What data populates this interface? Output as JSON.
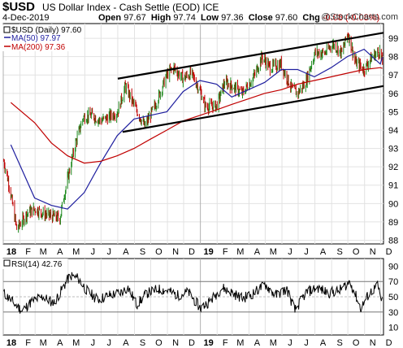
{
  "header": {
    "symbol": "$USD",
    "description": "US Dollar Index - Cash Settle (EOD)",
    "exchange": "ICE",
    "date": "4-Dec-2019",
    "open_label": "Open",
    "open": "97.67",
    "high_label": "High",
    "high": "97.74",
    "low_label": "Low",
    "low": "97.36",
    "close_label": "Close",
    "close": "97.60",
    "chg_label": "Chg",
    "chg": "-0.08 (-0.08%)",
    "watermark": "@StockCharts.com"
  },
  "colors": {
    "price": "#000000",
    "up": "#1f8a1f",
    "down": "#c00000",
    "ma50": "#1f1f9f",
    "ma200": "#c00000",
    "rsi": "#000000"
  },
  "chart_data": [
    {
      "type": "line",
      "title": "$USD (Daily) 97.60",
      "ylim": [
        87.8,
        99.8
      ],
      "y_ticks": [
        "88",
        "89",
        "90",
        "91",
        "92",
        "93",
        "94",
        "95",
        "96",
        "97",
        "98",
        "99"
      ],
      "x_ticks": [
        "18",
        "F",
        "M",
        "A",
        "M",
        "J",
        "J",
        "A",
        "S",
        "O",
        "N",
        "D",
        "19",
        "F",
        "M",
        "A",
        "M",
        "J",
        "J",
        "A",
        "S",
        "O",
        "N",
        "D"
      ],
      "x_range": [
        "2018-01-01",
        "2019-12-06"
      ],
      "legend": {
        "placement": "top-left",
        "title": "$USD (Daily) 97.60",
        "ma50": "MA(50) 97.97",
        "ma200": "MA(200) 97.36"
      },
      "series": [
        {
          "name": "$USD",
          "x": [
            "2018-01-02",
            "2018-01-12",
            "2018-01-26",
            "2018-02-15",
            "2018-03-01",
            "2018-03-20",
            "2018-04-16",
            "2018-04-24",
            "2018-05-15",
            "2018-05-29",
            "2018-06-15",
            "2018-06-30",
            "2018-07-15",
            "2018-08-01",
            "2018-08-15",
            "2018-09-01",
            "2018-09-20",
            "2018-10-10",
            "2018-10-31",
            "2018-11-12",
            "2018-11-30",
            "2018-12-15",
            "2019-01-01",
            "2019-01-10",
            "2019-01-31",
            "2019-02-15",
            "2019-03-01",
            "2019-03-20",
            "2019-04-10",
            "2019-04-25",
            "2019-05-10",
            "2019-05-30",
            "2019-06-20",
            "2019-06-30",
            "2019-07-15",
            "2019-08-01",
            "2019-08-20",
            "2019-09-03",
            "2019-09-20",
            "2019-10-01",
            "2019-10-15",
            "2019-10-31",
            "2019-11-15",
            "2019-11-29",
            "2019-12-04"
          ],
          "values": [
            92.3,
            91.0,
            88.6,
            89.5,
            89.7,
            89.4,
            89.2,
            90.5,
            93.3,
            94.7,
            94.8,
            94.5,
            94.7,
            95.0,
            96.4,
            95.3,
            94.2,
            95.4,
            97.0,
            97.4,
            96.8,
            97.1,
            96.1,
            95.3,
            95.3,
            96.6,
            96.4,
            96.0,
            96.9,
            98.0,
            97.4,
            97.6,
            96.2,
            96.0,
            96.6,
            98.2,
            98.2,
            98.7,
            98.2,
            99.3,
            97.7,
            97.3,
            98.0,
            98.3,
            97.6
          ]
        },
        {
          "name": "MA(50)",
          "x": [
            "2018-01-15",
            "2018-02-28",
            "2018-03-31",
            "2018-04-30",
            "2018-05-31",
            "2018-06-30",
            "2018-07-31",
            "2018-08-31",
            "2018-09-30",
            "2018-10-31",
            "2018-11-30",
            "2018-12-31",
            "2019-01-31",
            "2019-02-28",
            "2019-03-31",
            "2019-04-30",
            "2019-05-31",
            "2019-06-30",
            "2019-07-31",
            "2019-08-31",
            "2019-09-30",
            "2019-10-31",
            "2019-11-30",
            "2019-12-04"
          ],
          "values": [
            93.2,
            90.3,
            89.9,
            89.7,
            90.6,
            92.2,
            93.7,
            94.6,
            94.8,
            95.0,
            96.1,
            96.7,
            96.5,
            95.8,
            96.2,
            96.6,
            97.3,
            97.3,
            96.9,
            97.4,
            98.0,
            98.4,
            97.6,
            97.97
          ]
        },
        {
          "name": "MA(200)",
          "x": [
            "2018-01-15",
            "2018-02-28",
            "2018-03-31",
            "2018-04-30",
            "2018-05-31",
            "2018-06-30",
            "2018-07-31",
            "2018-08-31",
            "2018-09-30",
            "2018-10-31",
            "2018-11-30",
            "2018-12-31",
            "2019-01-31",
            "2019-02-28",
            "2019-03-31",
            "2019-04-30",
            "2019-05-31",
            "2019-06-30",
            "2019-07-31",
            "2019-08-31",
            "2019-09-30",
            "2019-10-31",
            "2019-11-30",
            "2019-12-04"
          ],
          "values": [
            95.5,
            94.4,
            93.3,
            92.6,
            92.2,
            92.3,
            92.6,
            93.0,
            93.5,
            94.0,
            94.5,
            94.8,
            95.1,
            95.4,
            95.7,
            96.0,
            96.2,
            96.5,
            96.7,
            96.9,
            97.1,
            97.3,
            97.4,
            97.36
          ]
        }
      ],
      "trendlines": [
        {
          "x": [
            "2018-08-01",
            "2019-12-06"
          ],
          "values": [
            96.8,
            99.3
          ]
        },
        {
          "x": [
            "2018-08-10",
            "2019-12-06"
          ],
          "values": [
            93.9,
            96.4
          ]
        }
      ]
    },
    {
      "type": "line",
      "title": "RSI(14) 42.76",
      "ylim": [
        0,
        100
      ],
      "y_ticks": [
        "10",
        "30",
        "50",
        "70",
        "90"
      ],
      "x_ticks": [
        "18",
        "F",
        "M",
        "A",
        "M",
        "J",
        "J",
        "A",
        "S",
        "O",
        "N",
        "D",
        "19",
        "F",
        "M",
        "A",
        "M",
        "J",
        "J",
        "A",
        "S",
        "O",
        "N",
        "D"
      ],
      "levels": [
        30,
        50,
        70
      ],
      "series": [
        {
          "name": "RSI(14)",
          "x": [
            "2018-01-02",
            "2018-01-20",
            "2018-02-05",
            "2018-02-25",
            "2018-03-15",
            "2018-04-05",
            "2018-04-20",
            "2018-05-05",
            "2018-05-20",
            "2018-06-05",
            "2018-06-25",
            "2018-07-15",
            "2018-08-05",
            "2018-08-20",
            "2018-09-05",
            "2018-09-25",
            "2018-10-15",
            "2018-11-01",
            "2018-11-20",
            "2018-12-10",
            "2019-01-01",
            "2019-01-20",
            "2019-02-10",
            "2019-03-01",
            "2019-03-20",
            "2019-04-10",
            "2019-05-01",
            "2019-05-20",
            "2019-06-10",
            "2019-06-25",
            "2019-07-15",
            "2019-08-05",
            "2019-08-25",
            "2019-09-15",
            "2019-10-05",
            "2019-10-25",
            "2019-11-10",
            "2019-11-25",
            "2019-12-04"
          ],
          "values": [
            55,
            42,
            32,
            45,
            50,
            42,
            60,
            78,
            74,
            58,
            46,
            52,
            55,
            62,
            40,
            55,
            60,
            58,
            52,
            56,
            35,
            45,
            62,
            55,
            48,
            55,
            66,
            52,
            60,
            32,
            55,
            62,
            55,
            58,
            70,
            35,
            55,
            64,
            42.76
          ]
        }
      ]
    }
  ]
}
